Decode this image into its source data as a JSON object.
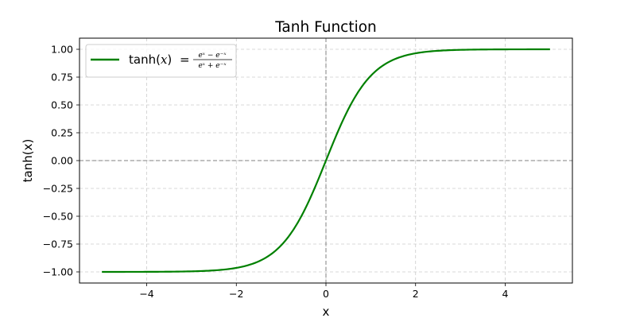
{
  "chart_data": {
    "type": "line",
    "title": "Tanh Function",
    "xlabel": "x",
    "ylabel": "tanh(x)",
    "xlim": [
      -5.5,
      5.5
    ],
    "ylim": [
      -1.1,
      1.1
    ],
    "x_ticks": [
      -4,
      -2,
      0,
      2,
      4
    ],
    "x_tick_labels": [
      "−4",
      "−2",
      "0",
      "2",
      "4"
    ],
    "y_ticks": [
      -1.0,
      -0.75,
      -0.5,
      -0.25,
      0.0,
      0.25,
      0.5,
      0.75,
      1.0
    ],
    "y_tick_labels": [
      "−1.00",
      "−0.75",
      "−0.50",
      "−0.25",
      "0.00",
      "0.25",
      "0.50",
      "0.75",
      "1.00"
    ],
    "grid": true,
    "grid_style": "dashed",
    "reference_lines": {
      "x": 0,
      "y": 0,
      "color": "#808080",
      "style": "dashed"
    },
    "legend_position": "top-left",
    "series": [
      {
        "name": "tanh(x) = (e^x − e^−x) / (e^x + e^−x)",
        "legend": {
          "lhs": "tanh(",
          "lhs_var": "x",
          "lhs_close": ")",
          "eq": "=",
          "numerator": "eˣ − e⁻ˣ",
          "denominator": "eˣ + e⁻ˣ"
        },
        "color": "#008000",
        "function": "tanh",
        "x_range": [
          -5,
          5
        ],
        "x": [
          -5,
          -4.5,
          -4,
          -3.5,
          -3,
          -2.5,
          -2,
          -1.75,
          -1.5,
          -1.25,
          -1,
          -0.75,
          -0.5,
          -0.25,
          0,
          0.25,
          0.5,
          0.75,
          1,
          1.25,
          1.5,
          1.75,
          2,
          2.5,
          3,
          3.5,
          4,
          4.5,
          5
        ],
        "y": [
          -0.9999,
          -0.9998,
          -0.9993,
          -0.9982,
          -0.9951,
          -0.9866,
          -0.964,
          -0.9414,
          -0.9051,
          -0.8483,
          -0.7616,
          -0.6351,
          -0.4621,
          -0.2449,
          0,
          0.2449,
          0.4621,
          0.6351,
          0.7616,
          0.8483,
          0.9051,
          0.9414,
          0.964,
          0.9866,
          0.9951,
          0.9982,
          0.9993,
          0.9998,
          0.9999
        ]
      }
    ]
  }
}
